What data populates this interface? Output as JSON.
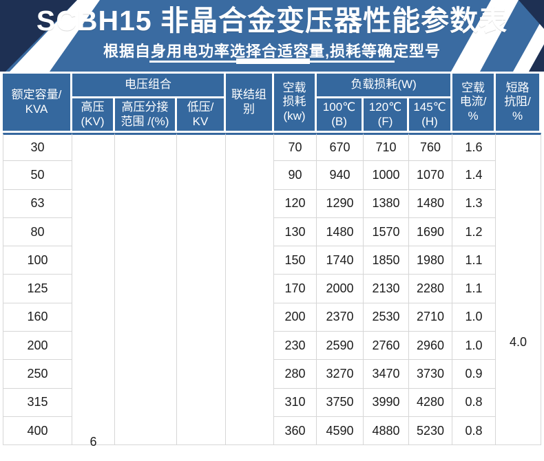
{
  "accent_colors": {
    "banner_blue": "#3a6ba1",
    "dark_navy": "#1e3053",
    "header_cell_blue": "#35689e",
    "header_rule_blue": "#36679e",
    "grid_gray": "#d6d6d6"
  },
  "banner": {
    "title": "SCBH15 非晶合金变压器性能参数表",
    "subtitle": "根据自身用电功率选择合适容量,损耗等确定型号"
  },
  "table": {
    "header": {
      "rated": [
        "额定容量/",
        "KVA"
      ],
      "voltage_group": "电压组合",
      "hv": [
        "高压",
        "(KV)"
      ],
      "hv_tap": [
        "高压分接",
        "范围 /(%)"
      ],
      "lv": [
        "低压/",
        "KV"
      ],
      "vector": [
        "联结组",
        "别"
      ],
      "no_load_loss": [
        "空载",
        "损耗",
        "(kw)"
      ],
      "load_loss": "负载损耗(W)",
      "t100": [
        "100℃",
        "(B)"
      ],
      "t120": [
        "120℃",
        "(F)"
      ],
      "t145": [
        "145℃",
        "(H)"
      ],
      "no_load_current": [
        "空载",
        "电流/",
        "%"
      ],
      "impedance": [
        "短路",
        "抗阻/",
        "%"
      ]
    }
  },
  "chart_data": {
    "type": "table",
    "title": "SCBH15 非晶合金变压器性能参数表",
    "subtitle": "根据自身用电功率选择合适容量,损耗等确定型号",
    "columns": [
      "额定容量/KVA",
      "高压(KV)",
      "高压分接范围/(%)",
      "低压/KV",
      "联结组别",
      "空载损耗(kw)",
      "负载损耗(W) 100℃(B)",
      "负载损耗(W) 120℃(F)",
      "负载损耗(W) 145℃(H)",
      "空载电流/%",
      "短路抗阻/%"
    ],
    "merged": {
      "hv_kv": "6",
      "impedance_pct": "4.0"
    },
    "rows": [
      [
        "30",
        "70",
        "670",
        "710",
        "760",
        "1.6"
      ],
      [
        "50",
        "90",
        "940",
        "1000",
        "1070",
        "1.4"
      ],
      [
        "63",
        "120",
        "1290",
        "1380",
        "1480",
        "1.3"
      ],
      [
        "80",
        "130",
        "1480",
        "1570",
        "1690",
        "1.2"
      ],
      [
        "100",
        "150",
        "1740",
        "1850",
        "1980",
        "1.1"
      ],
      [
        "125",
        "170",
        "2000",
        "2130",
        "2280",
        "1.1"
      ],
      [
        "160",
        "200",
        "2370",
        "2530",
        "2710",
        "1.0"
      ],
      [
        "200",
        "230",
        "2590",
        "2760",
        "2960",
        "1.0"
      ],
      [
        "250",
        "280",
        "3270",
        "3470",
        "3730",
        "0.9"
      ],
      [
        "315",
        "310",
        "3750",
        "3990",
        "4280",
        "0.8"
      ],
      [
        "400",
        "360",
        "4590",
        "4880",
        "5230",
        "0.8"
      ]
    ]
  }
}
